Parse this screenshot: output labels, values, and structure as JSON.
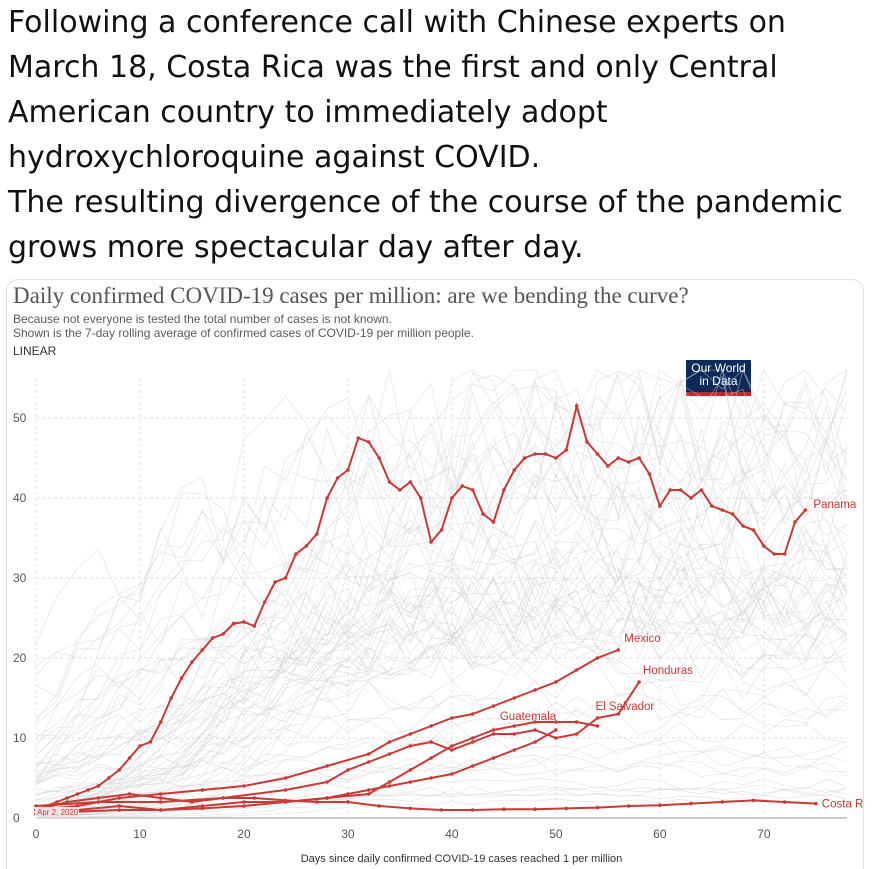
{
  "tweet": {
    "lines": [
      "Following a conference call with Chinese experts on",
      "March 18, Costa Rica was the first and only Central",
      "American country to immediately adopt",
      "hydroxychloroquine against COVID.",
      "The resulting divergence of the course of the pandemic",
      "grows more spectacular day after day."
    ]
  },
  "chart_data": {
    "type": "line",
    "title": "Daily confirmed COVID-19 cases per million: are we bending the curve?",
    "subtitle": [
      "Because not everyone is tested the total number of cases is not known.",
      "Shown is the 7-day rolling average of confirmed cases of COVID-19 per million people."
    ],
    "scale_label": "LINEAR",
    "source_logo": [
      "Our World",
      "in Data"
    ],
    "xlabel": "Days since daily confirmed COVID-19 cases reached 1 per million",
    "ylabel": "",
    "xlim": [
      0,
      78
    ],
    "ylim": [
      0,
      55
    ],
    "xticks": [
      0,
      10,
      20,
      30,
      40,
      50,
      60,
      70
    ],
    "yticks": [
      0,
      10,
      20,
      30,
      40,
      50
    ],
    "date_marker": "Apr 2, 2020",
    "highlight_color": "#c73a36",
    "background_color": "#d4d4d4",
    "series": [
      {
        "name": "Panama",
        "x": [
          0,
          1,
          2,
          3,
          4,
          5,
          6,
          7,
          8,
          9,
          10,
          11,
          12,
          13,
          14,
          15,
          16,
          17,
          18,
          19,
          20,
          21,
          22,
          23,
          24,
          25,
          26,
          27,
          28,
          29,
          30,
          31,
          32,
          33,
          34,
          35,
          36,
          37,
          38,
          39,
          40,
          41,
          42,
          43,
          44,
          45,
          46,
          47,
          48,
          49,
          50,
          51,
          52,
          53,
          54,
          55,
          56,
          57,
          58,
          59,
          60,
          61,
          62,
          63,
          64,
          65,
          66,
          67,
          68,
          69,
          70,
          71,
          72,
          73,
          74
        ],
        "y": [
          1,
          1.5,
          2,
          2.5,
          3,
          3.5,
          4,
          5,
          6,
          7.5,
          9,
          9.5,
          12,
          15,
          17.5,
          19.5,
          21,
          22.5,
          23,
          24.3,
          24.5,
          24,
          27,
          29.5,
          30,
          33,
          34,
          35.5,
          40,
          42.5,
          43.5,
          47.5,
          47,
          45,
          42,
          41,
          42,
          40,
          34.5,
          36,
          40,
          41.5,
          41,
          38,
          37,
          41,
          43.5,
          45,
          45.5,
          45.5,
          45,
          46,
          51.5,
          47,
          45.5,
          44,
          45,
          44.5,
          45,
          43,
          39,
          41,
          41,
          40,
          41,
          39,
          38.5,
          38,
          36.5,
          36,
          34,
          33,
          33,
          37,
          38.5
        ]
      },
      {
        "name": "Mexico",
        "x": [
          0,
          4,
          8,
          12,
          16,
          20,
          24,
          28,
          32,
          34,
          36,
          38,
          40,
          42,
          44,
          46,
          48,
          50,
          52,
          54,
          56
        ],
        "y": [
          1,
          1.5,
          2.5,
          3,
          3.5,
          4,
          5,
          6.5,
          8,
          9.5,
          10.5,
          11.5,
          12.5,
          13,
          14,
          15,
          16,
          17,
          18.5,
          20,
          21
        ]
      },
      {
        "name": "Honduras",
        "x": [
          0,
          6,
          12,
          18,
          24,
          28,
          30,
          32,
          34,
          36,
          38,
          40,
          42,
          44,
          46,
          48,
          50,
          52,
          54,
          56,
          58
        ],
        "y": [
          1.5,
          2,
          2,
          2.5,
          3.5,
          4.5,
          6,
          7,
          8,
          9,
          9.5,
          8.5,
          9.5,
          10.5,
          10.5,
          11,
          10,
          10.5,
          12.5,
          13,
          17
        ]
      },
      {
        "name": "El Salvador",
        "x": [
          0,
          4,
          8,
          12,
          16,
          20,
          24,
          28,
          32,
          34,
          36,
          38,
          40,
          42,
          44,
          46,
          48,
          50,
          52,
          54
        ],
        "y": [
          0.5,
          1,
          1.5,
          1,
          1.5,
          2,
          2,
          2.5,
          3,
          4.5,
          6,
          7.5,
          9,
          10,
          11,
          11.5,
          12,
          12,
          12,
          11.5
        ]
      },
      {
        "name": "Guatemala",
        "x": [
          0,
          4,
          8,
          12,
          16,
          20,
          24,
          28,
          30,
          32,
          34,
          36,
          38,
          40,
          42,
          44,
          46,
          48,
          50
        ],
        "y": [
          0.5,
          0.8,
          1,
          1,
          1.2,
          1.5,
          2,
          2.5,
          3,
          3.5,
          4,
          4.5,
          5,
          5.5,
          6.5,
          7.5,
          8.5,
          9.5,
          11
        ]
      },
      {
        "name": "Costa Rica",
        "x": [
          0,
          3,
          6,
          9,
          12,
          15,
          18,
          21,
          24,
          27,
          30,
          33,
          36,
          39,
          42,
          45,
          48,
          51,
          54,
          57,
          60,
          63,
          66,
          69,
          72,
          75
        ],
        "y": [
          1,
          2,
          2.5,
          3,
          2.5,
          2,
          2.5,
          2.5,
          2.2,
          2,
          2,
          1.5,
          1.2,
          1,
          1,
          1.1,
          1.1,
          1.2,
          1.3,
          1.5,
          1.6,
          1.8,
          2,
          2.2,
          2,
          1.8
        ]
      }
    ]
  }
}
